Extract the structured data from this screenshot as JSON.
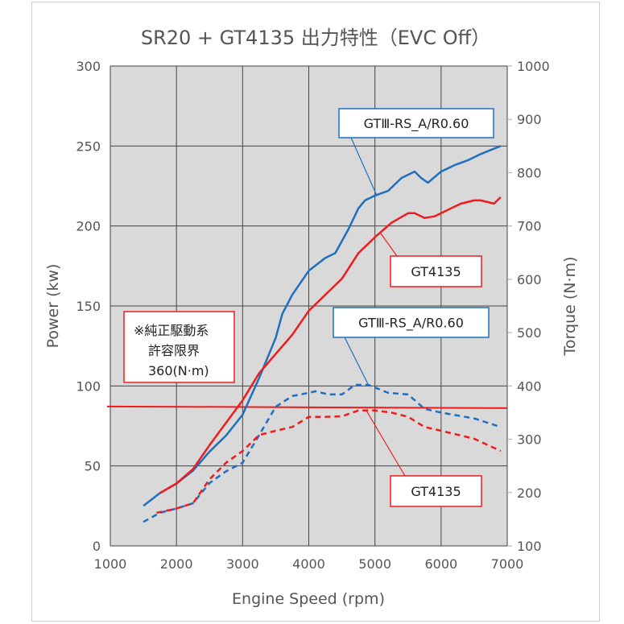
{
  "chart_data": {
    "type": "line",
    "title": "SR20 + GT4135 出力特性（EVC Off）",
    "xlabel": "Engine Speed (rpm)",
    "ylabel": "Power (kw)",
    "y2label": "Torque (N·m)",
    "xlim": [
      1000,
      7000
    ],
    "ylim": [
      0,
      300
    ],
    "y2lim": [
      100,
      1000
    ],
    "xticks": [
      "1000",
      "2000",
      "3000",
      "4000",
      "5000",
      "6000",
      "7000"
    ],
    "yticks": [
      "0",
      "50",
      "100",
      "150",
      "200",
      "250",
      "300"
    ],
    "y2ticks": [
      "100",
      "200",
      "300",
      "400",
      "500",
      "600",
      "700",
      "800",
      "900",
      "1000"
    ],
    "grid": true,
    "colors": {
      "blue": "#1f6fc0",
      "red": "#ee1c1c",
      "plot_bg": "#d9d9d9"
    },
    "series": [
      {
        "name": "GTⅢ-RS_A/R0.60",
        "kind": "power",
        "axis": "left",
        "color": "#1f6fc0",
        "dash": false,
        "x": [
          1500,
          1750,
          2000,
          2250,
          2500,
          2750,
          3000,
          3250,
          3500,
          3600,
          3750,
          4000,
          4250,
          4400,
          4600,
          4750,
          4850,
          5000,
          5200,
          5400,
          5600,
          5700,
          5800,
          6000,
          6200,
          6400,
          6600,
          6900
        ],
        "y": [
          25,
          33,
          39,
          47,
          59,
          69,
          82,
          105,
          130,
          145,
          157,
          172,
          180,
          183,
          198,
          211,
          216,
          219,
          222,
          230,
          234,
          230,
          227,
          234,
          238,
          241,
          245,
          250
        ]
      },
      {
        "name": "GT4135",
        "kind": "power",
        "axis": "left",
        "color": "#ee1c1c",
        "dash": false,
        "x": [
          1750,
          2000,
          2250,
          2500,
          2750,
          3000,
          3250,
          3500,
          3750,
          4000,
          4250,
          4500,
          4750,
          5000,
          5250,
          5500,
          5600,
          5750,
          5900,
          6100,
          6300,
          6500,
          6600,
          6800,
          6900
        ],
        "y": [
          33,
          39,
          48,
          63,
          77,
          91,
          108,
          120,
          132,
          147,
          157,
          167,
          183,
          193,
          202,
          208,
          208,
          205,
          206,
          210,
          214,
          216,
          216,
          214,
          218
        ]
      },
      {
        "name": "GTⅢ-RS_A/R0.60",
        "kind": "torque",
        "axis": "right",
        "color": "#1f6fc0",
        "dash": true,
        "x": [
          1500,
          1750,
          2000,
          2250,
          2500,
          2750,
          3000,
          3250,
          3500,
          3750,
          4000,
          4100,
          4300,
          4500,
          4700,
          4900,
          5200,
          5500,
          5750,
          6000,
          6500,
          6900
        ],
        "y": [
          145,
          162,
          170,
          180,
          218,
          240,
          256,
          308,
          361,
          381,
          387,
          390,
          384,
          384,
          402,
          402,
          387,
          384,
          357,
          350,
          339,
          323
        ]
      },
      {
        "name": "GT4135",
        "kind": "torque",
        "axis": "right",
        "color": "#ee1c1c",
        "dash": true,
        "x": [
          1700,
          2000,
          2250,
          2500,
          2750,
          3000,
          3250,
          3500,
          3750,
          4000,
          4250,
          4500,
          4750,
          5000,
          5250,
          5500,
          5750,
          6000,
          6500,
          6900
        ],
        "y": [
          162,
          170,
          180,
          225,
          256,
          278,
          308,
          316,
          323,
          342,
          342,
          343,
          354,
          354,
          350,
          342,
          323,
          316,
          301,
          278
        ]
      }
    ],
    "reference_line": {
      "axis": "right",
      "value": 360,
      "color": "#ee1c1c"
    },
    "annotations": {
      "blue_power": "GTⅢ-RS_A/R0.60",
      "red_power": "GT4135",
      "blue_torque": "GTⅢ-RS_A/R0.60",
      "red_torque": "GT4135",
      "limit_line1": "※純正駆動系",
      "limit_line2": "許容限界",
      "limit_line3": "360(N·m)"
    }
  }
}
